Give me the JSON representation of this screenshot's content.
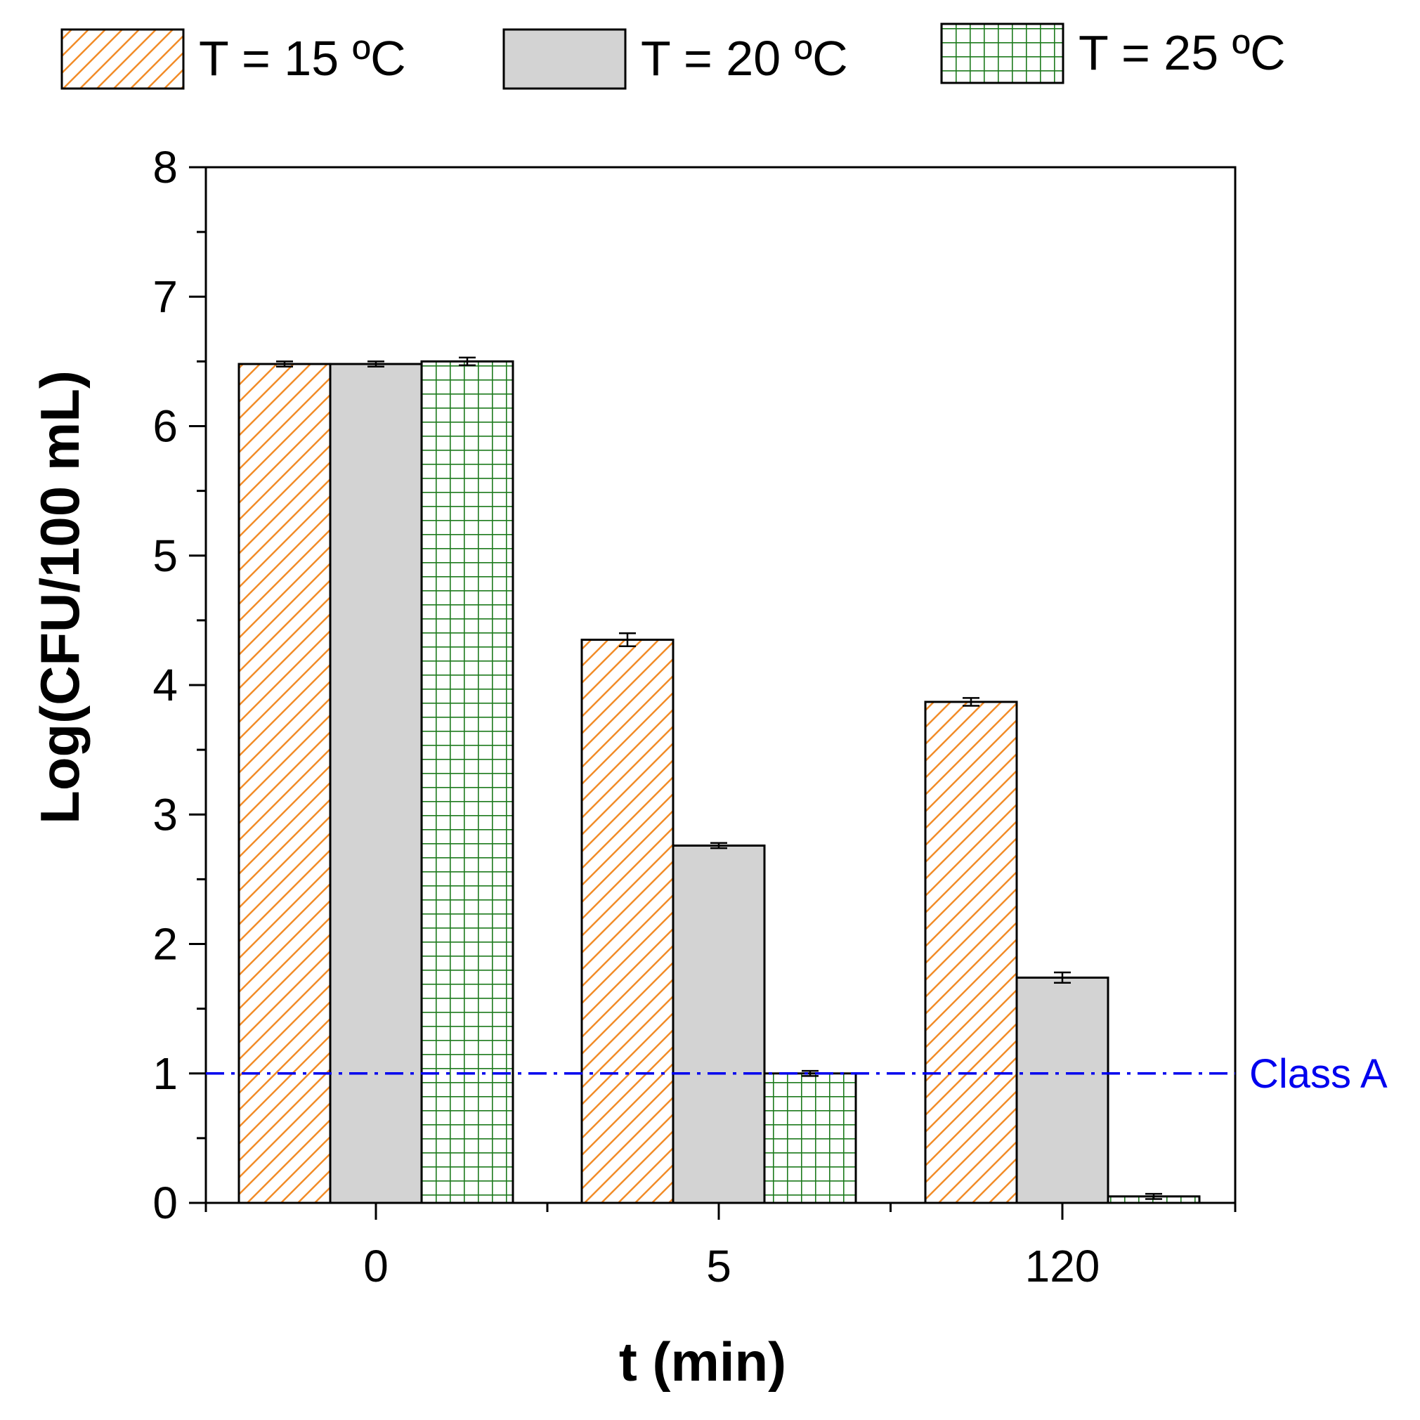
{
  "chart_data": {
    "type": "bar",
    "title": "",
    "xlabel": "t (min)",
    "ylabel": "Log(CFU/100 mL)",
    "ylim": [
      0,
      8
    ],
    "yticks": [
      "0",
      "1",
      "2",
      "3",
      "4",
      "5",
      "6",
      "7",
      "8"
    ],
    "categories": [
      "0",
      "5",
      "120"
    ],
    "legend_position": "top",
    "series": [
      {
        "name": "T = 15 ºC",
        "pattern": "diagonal-hatch",
        "color": "#F28C28",
        "values": [
          6.48,
          4.35,
          3.87
        ],
        "errors": [
          0.02,
          0.05,
          0.03
        ]
      },
      {
        "name": "T = 20 ºC",
        "pattern": "solid",
        "color": "#D3D3D3",
        "values": [
          6.48,
          2.76,
          1.74
        ],
        "errors": [
          0.02,
          0.02,
          0.04
        ]
      },
      {
        "name": "T = 25 ºC",
        "pattern": "grid",
        "color": "#1E7B1E",
        "values": [
          6.5,
          1.0,
          0.05
        ],
        "errors": [
          0.03,
          0.02,
          0.02
        ]
      }
    ],
    "reference_line": {
      "label": "Class A",
      "value": 1,
      "color": "#0000EE",
      "style": "dash-dot"
    }
  }
}
